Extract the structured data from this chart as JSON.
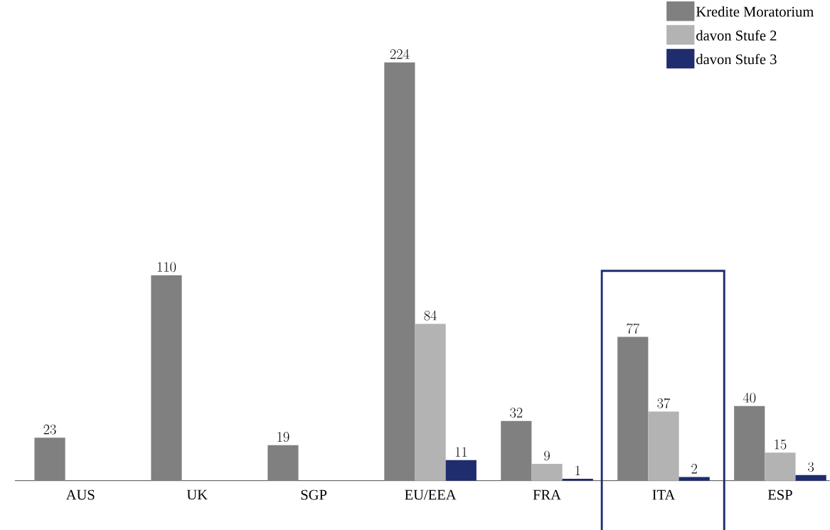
{
  "chart_data": {
    "type": "bar",
    "categories": [
      "AUS",
      "UK",
      "SGP",
      "EU/EEA",
      "FRA",
      "ITA",
      "ESP"
    ],
    "series": [
      {
        "name": "Kredite Moratorium",
        "color": "#808080",
        "values": [
          23,
          110,
          19,
          224,
          32,
          77,
          40
        ]
      },
      {
        "name": "davon Stufe 2",
        "color": "#b3b3b3",
        "values": [
          null,
          null,
          null,
          84,
          9,
          37,
          15
        ]
      },
      {
        "name": "davon Stufe 3",
        "color": "#1f2c6e",
        "values": [
          null,
          null,
          null,
          11,
          1,
          2,
          3
        ]
      }
    ],
    "data_labels": true,
    "legend": "top right"
  }
}
